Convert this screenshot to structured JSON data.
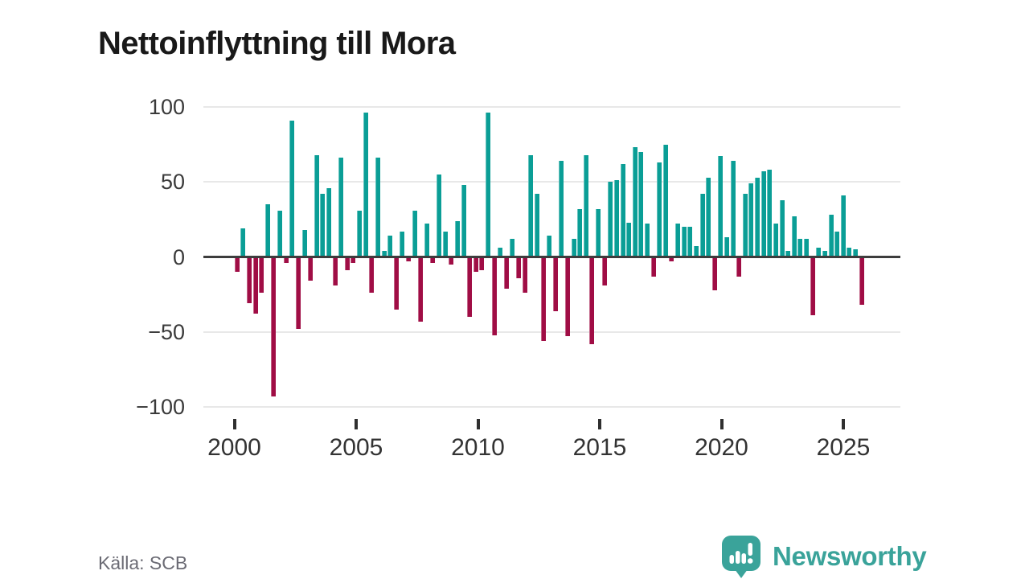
{
  "title": "Nettoinflyttning till Mora",
  "source": "Källa: SCB",
  "branding": {
    "name": "Newsworthy"
  },
  "colors": {
    "positive_bar": "#0a9e96",
    "negative_bar": "#a00d45",
    "zero_line": "#3d3d3d",
    "gridline": "#e8e8e8",
    "title_text": "#191919",
    "axis_text": "#3a3a3a",
    "source_text": "#6b6b74",
    "brand_teal": "#3aa39a"
  },
  "chart_data": {
    "type": "bar",
    "title": "Nettoinflyttning till Mora",
    "grid": "horizontal",
    "legend_position": "none",
    "ylim": [
      -100,
      100
    ],
    "y_ticks": [
      100,
      50,
      0,
      -50,
      -100
    ],
    "y_tick_labels": [
      "100",
      "50",
      "0",
      "−50",
      "−100"
    ],
    "x_tick_labels": [
      "2000",
      "2005",
      "2010",
      "2015",
      "2020",
      "2025"
    ],
    "quarters": [
      "2000Q1",
      "2000Q2",
      "2000Q3",
      "2000Q4",
      "2001Q1",
      "2001Q2",
      "2001Q3",
      "2001Q4",
      "2002Q1",
      "2002Q2",
      "2002Q3",
      "2002Q4",
      "2003Q1",
      "2003Q2",
      "2003Q3",
      "2003Q4",
      "2004Q1",
      "2004Q2",
      "2004Q3",
      "2004Q4",
      "2005Q1",
      "2005Q2",
      "2005Q3",
      "2005Q4",
      "2006Q1",
      "2006Q2",
      "2006Q3",
      "2006Q4",
      "2007Q1",
      "2007Q2",
      "2007Q3",
      "2007Q4",
      "2008Q1",
      "2008Q2",
      "2008Q3",
      "2008Q4",
      "2009Q1",
      "2009Q2",
      "2009Q3",
      "2009Q4",
      "2010Q1",
      "2010Q2",
      "2010Q3",
      "2010Q4",
      "2011Q1",
      "2011Q2",
      "2011Q3",
      "2011Q4",
      "2012Q1",
      "2012Q2",
      "2012Q3",
      "2012Q4",
      "2013Q1",
      "2013Q2",
      "2013Q3",
      "2013Q4",
      "2014Q1",
      "2014Q2",
      "2014Q3",
      "2014Q4",
      "2015Q1",
      "2015Q2",
      "2015Q3",
      "2015Q4",
      "2016Q1",
      "2016Q2",
      "2016Q3",
      "2016Q4",
      "2017Q1",
      "2017Q2",
      "2017Q3",
      "2017Q4",
      "2018Q1",
      "2018Q2",
      "2018Q3",
      "2018Q4",
      "2019Q1",
      "2019Q2",
      "2019Q3",
      "2019Q4",
      "2020Q1",
      "2020Q2",
      "2020Q3",
      "2020Q4",
      "2021Q1",
      "2021Q2",
      "2021Q3",
      "2021Q4",
      "2022Q1",
      "2022Q2",
      "2022Q3",
      "2022Q4",
      "2023Q1",
      "2023Q2",
      "2023Q3",
      "2023Q4",
      "2024Q1",
      "2024Q2",
      "2024Q3",
      "2024Q4",
      "2025Q1",
      "2025Q2",
      "2025Q3"
    ],
    "values": [
      -10,
      19,
      -31,
      -38,
      -24,
      35,
      -93,
      31,
      -4,
      91,
      -48,
      18,
      -16,
      68,
      42,
      46,
      -19,
      66,
      -9,
      -4,
      31,
      96,
      -24,
      66,
      4,
      14,
      -35,
      17,
      -3,
      31,
      -43,
      22,
      -4,
      55,
      17,
      -5,
      24,
      48,
      -40,
      -10,
      -9,
      96,
      -52,
      6,
      -21,
      12,
      -14,
      -24,
      68,
      42,
      -56,
      14,
      -36,
      64,
      -53,
      12,
      32,
      68,
      -58,
      32,
      -19,
      50,
      51,
      62,
      23,
      73,
      70,
      22,
      -13,
      63,
      75,
      -3,
      22,
      20,
      20,
      7,
      42,
      53,
      -22,
      67,
      13,
      64,
      -13,
      42,
      49,
      53,
      57,
      58,
      22,
      38,
      4,
      27,
      12,
      12,
      -39,
      6,
      4,
      28,
      17,
      41,
      6,
      5,
      -32
    ]
  }
}
